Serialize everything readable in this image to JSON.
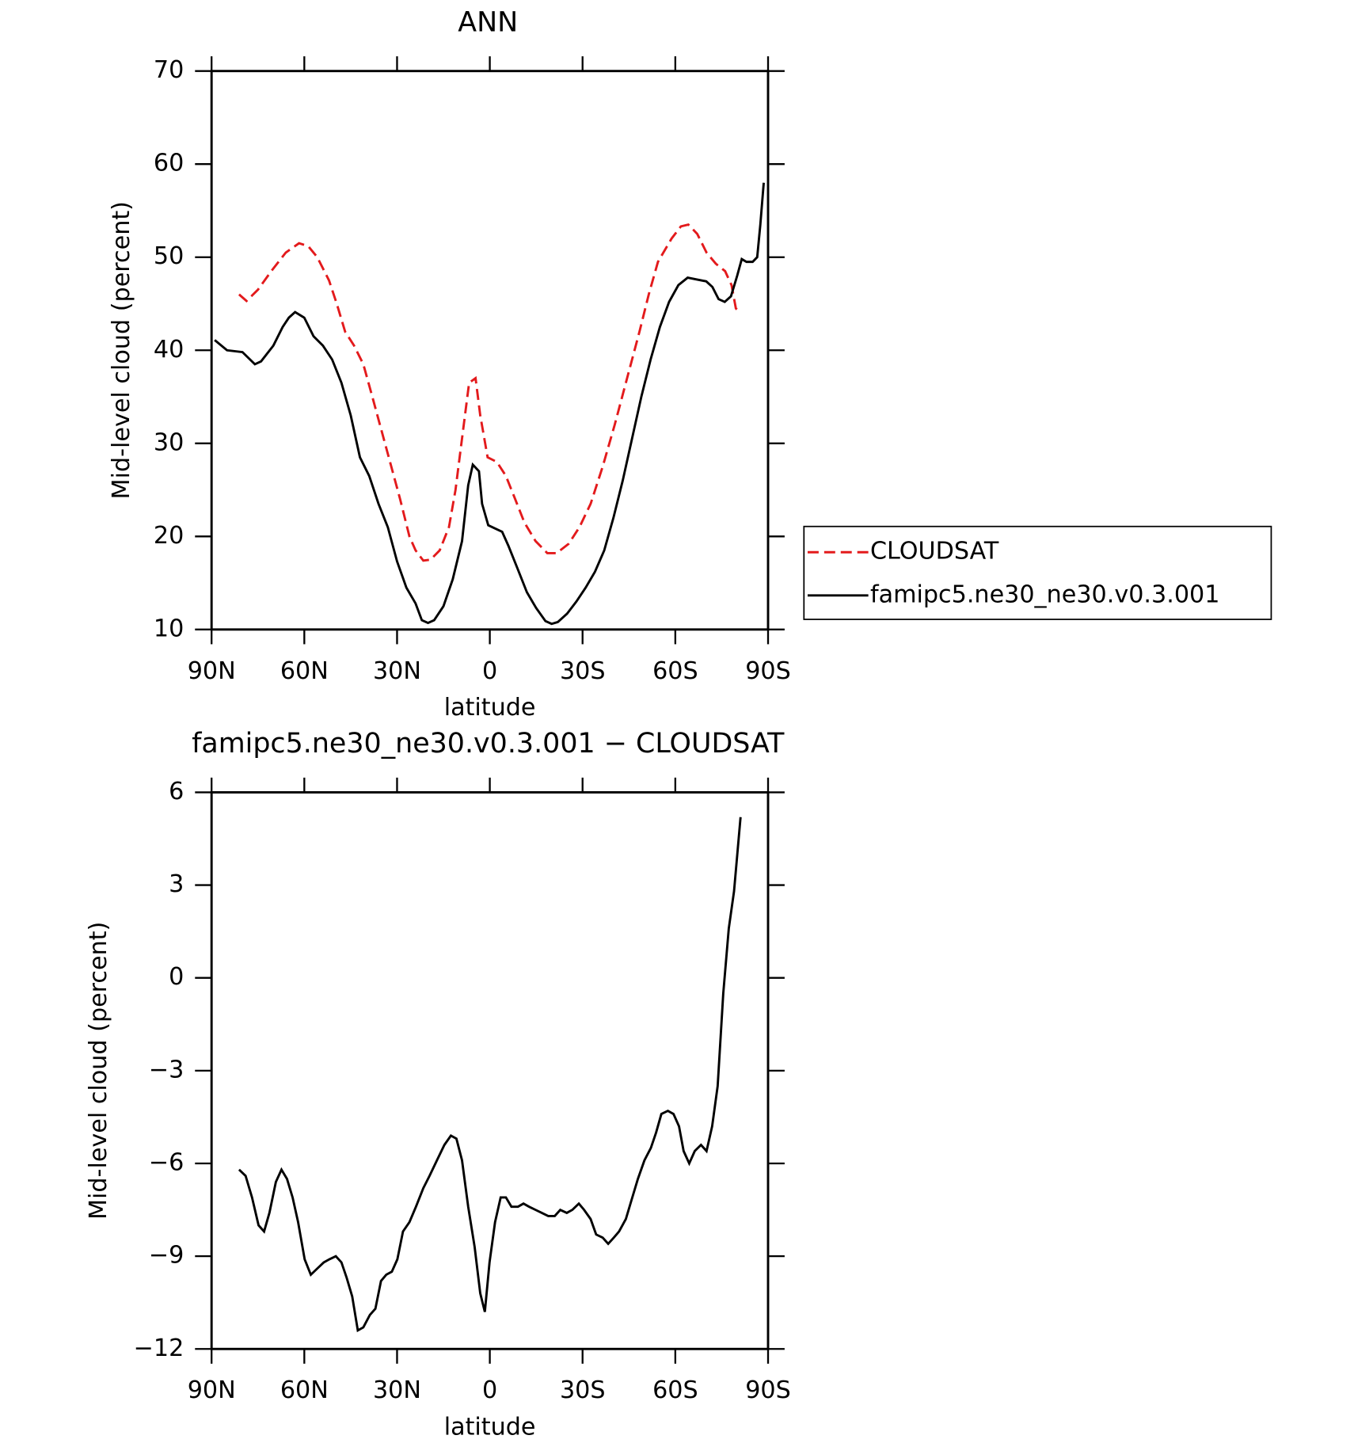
{
  "chart_data": [
    {
      "type": "line",
      "title": "ANN",
      "x_label": "latitude",
      "y_label": "Mid-level cloud (percent)",
      "xlim": [
        90,
        -90
      ],
      "xticks": [
        {
          "value": 90,
          "label": "90N"
        },
        {
          "value": 60,
          "label": "60N"
        },
        {
          "value": 30,
          "label": "30N"
        },
        0,
        {
          "value": -30,
          "label": "30S"
        },
        {
          "value": -60,
          "label": "60S"
        },
        {
          "value": -90,
          "label": "90S"
        }
      ],
      "ylim": [
        10,
        70
      ],
      "yticks": [
        10,
        20,
        30,
        40,
        50,
        60,
        70
      ],
      "legend": "right",
      "series": [
        {
          "name": "CLOUDSAT",
          "color": "#e31a1c",
          "dashed": true,
          "x": [
            81.1,
            78.7,
            75,
            70.7,
            66,
            61.7,
            58.8,
            55.8,
            52,
            49.5,
            46.8,
            43.9,
            40.9,
            38,
            33.5,
            29,
            26,
            24,
            21.5,
            19.2,
            16.2,
            13.2,
            11.1,
            8.8,
            6.7,
            4.6,
            3.1,
            0.7,
            -2.3,
            -5.2,
            -8.2,
            -11.2,
            -14.8,
            -18.6,
            -21.6,
            -25.5,
            -29,
            -32.6,
            -36.5,
            -40.4,
            -44,
            -48.4,
            -51.4,
            -54.4,
            -58.8,
            -61.8,
            -64.2,
            -67.1,
            -70.1,
            -73.1,
            -76.1,
            -78.2,
            -79.6,
            -81.1
          ],
          "values": [
            46.0,
            45.3,
            46.5,
            48.5,
            50.5,
            51.5,
            51.2,
            50.0,
            47.5,
            45.0,
            42.0,
            40.5,
            38.5,
            35.0,
            29.5,
            24.0,
            20.0,
            18.5,
            17.4,
            17.5,
            18.5,
            21.0,
            25.0,
            31.0,
            36.5,
            37.0,
            33.0,
            28.5,
            28.0,
            26.5,
            24.0,
            21.5,
            19.5,
            18.2,
            18.2,
            19.2,
            21.0,
            23.5,
            27.5,
            32.0,
            36.5,
            42.0,
            46.0,
            49.5,
            52.0,
            53.3,
            53.5,
            52.5,
            50.5,
            49.3,
            48.5,
            47.0,
            44.5,
            44.0
          ]
        },
        {
          "name": "famipc5.ne30_ne30.v0.3.001",
          "color": "#000000",
          "dashed": false,
          "x": [
            89,
            85,
            80,
            76,
            74,
            70,
            67,
            65,
            63,
            60,
            57,
            54,
            51,
            48,
            45,
            42,
            39,
            36,
            33,
            30,
            27,
            24,
            22,
            20,
            18,
            15,
            12,
            9,
            7,
            5.5,
            3.5,
            2.5,
            0.5,
            -2,
            -4,
            -6,
            -9,
            -12,
            -15,
            -18,
            -20,
            -22,
            -25,
            -28,
            -31,
            -34,
            -37,
            -40,
            -43,
            -46,
            -49,
            -52,
            -55,
            -58,
            -61,
            -64,
            -67,
            -70,
            -72,
            -74,
            -76,
            -78,
            -80,
            -81.5,
            -83,
            -85,
            -86.5,
            -87.5,
            -88.6
          ],
          "values": [
            41.1,
            40.0,
            39.8,
            38.5,
            38.8,
            40.5,
            42.5,
            43.5,
            44.1,
            43.5,
            41.5,
            40.5,
            39.0,
            36.5,
            33.0,
            28.5,
            26.5,
            23.5,
            21.0,
            17.3,
            14.5,
            12.8,
            11.0,
            10.7,
            11.0,
            12.5,
            15.4,
            19.5,
            25.5,
            27.7,
            27.0,
            23.5,
            21.2,
            20.8,
            20.5,
            19.0,
            16.5,
            14.0,
            12.3,
            10.9,
            10.6,
            10.8,
            11.7,
            13.0,
            14.5,
            16.2,
            18.5,
            22.0,
            26.0,
            30.5,
            35.0,
            39.0,
            42.5,
            45.2,
            47.0,
            47.8,
            47.6,
            47.4,
            46.8,
            45.5,
            45.2,
            45.8,
            48.0,
            49.8,
            49.5,
            49.5,
            50.0,
            53.5,
            58.0
          ]
        }
      ]
    },
    {
      "type": "line",
      "title": "famipc5.ne30_ne30.v0.3.001 − CLOUDSAT",
      "x_label": "latitude",
      "y_label": "Mid-level cloud (percent)",
      "xlim": [
        90,
        -90
      ],
      "xticks": [
        {
          "value": 90,
          "label": "90N"
        },
        {
          "value": 60,
          "label": "60N"
        },
        {
          "value": 30,
          "label": "30N"
        },
        0,
        {
          "value": -30,
          "label": "30S"
        },
        {
          "value": -60,
          "label": "60S"
        },
        {
          "value": -90,
          "label": "90S"
        }
      ],
      "ylim": [
        -12,
        6
      ],
      "yticks": [
        {
          "value": -12,
          "label": "−12"
        },
        {
          "value": -9,
          "label": "−9"
        },
        {
          "value": -6,
          "label": "−6"
        },
        {
          "value": -3,
          "label": "−3"
        },
        0,
        3,
        6
      ],
      "series": [
        {
          "color": "#000000",
          "dashed": false,
          "x": [
            81.1,
            79,
            76.9,
            74.8,
            73,
            71.3,
            69.2,
            67.4,
            65.6,
            63.8,
            62,
            59.9,
            57.9,
            55.8,
            53.7,
            51.9,
            49.8,
            48,
            46.3,
            44.5,
            42.7,
            40.9,
            38.8,
            37,
            35.2,
            33.5,
            31.7,
            29.9,
            28.1,
            26,
            23.9,
            21.5,
            19.5,
            17.1,
            14.7,
            12.6,
            10.8,
            9,
            7,
            4.9,
            3.1,
            1.6,
            0.1,
            -1.7,
            -3.5,
            -5.2,
            -7,
            -9.1,
            -10.9,
            -12.7,
            -14.8,
            -16.8,
            -18.9,
            -21,
            -22.8,
            -24.9,
            -26.7,
            -28.8,
            -30.5,
            -32.6,
            -34.4,
            -36.5,
            -38.3,
            -40.1,
            -41.8,
            -44,
            -45.8,
            -47.9,
            -50,
            -52.1,
            -53.8,
            -55.5,
            -57.6,
            -59.4,
            -61.2,
            -62.7,
            -64.5,
            -66.3,
            -68.3,
            -70.1,
            -71.9,
            -73.7,
            -75.5,
            -77.3,
            -79,
            -81.1
          ],
          "values": [
            -6.2,
            -6.4,
            -7.1,
            -8.0,
            -8.2,
            -7.6,
            -6.6,
            -6.2,
            -6.5,
            -7.1,
            -7.9,
            -9.1,
            -9.6,
            -9.4,
            -9.2,
            -9.1,
            -9.0,
            -9.2,
            -9.7,
            -10.3,
            -11.4,
            -11.3,
            -10.9,
            -10.7,
            -9.8,
            -9.6,
            -9.5,
            -9.1,
            -8.2,
            -7.9,
            -7.4,
            -6.8,
            -6.4,
            -5.9,
            -5.4,
            -5.1,
            -5.2,
            -5.9,
            -7.4,
            -8.7,
            -10.2,
            -10.8,
            -9.2,
            -7.9,
            -7.1,
            -7.1,
            -7.4,
            -7.4,
            -7.3,
            -7.4,
            -7.5,
            -7.6,
            -7.7,
            -7.7,
            -7.5,
            -7.6,
            -7.5,
            -7.3,
            -7.5,
            -7.8,
            -8.3,
            -8.4,
            -8.6,
            -8.4,
            -8.2,
            -7.8,
            -7.2,
            -6.5,
            -5.9,
            -5.5,
            -5.0,
            -4.4,
            -4.3,
            -4.4,
            -4.8,
            -5.6,
            -6.0,
            -5.6,
            -5.4,
            -5.6,
            -4.8,
            -3.5,
            -0.5,
            1.6,
            2.8,
            5.2
          ]
        }
      ]
    }
  ]
}
